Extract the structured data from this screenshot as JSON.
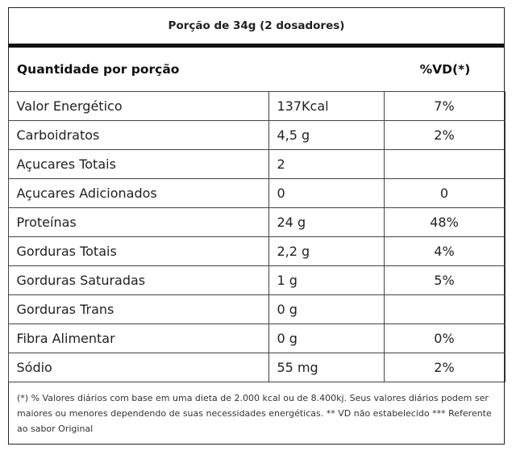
{
  "serving": "Porção de 34g (2 dosadores)",
  "header": {
    "left": "Quantidade por porção",
    "right": "%VD(*)"
  },
  "rows": [
    {
      "name": "Valor Energético",
      "amount": "137Kcal",
      "vd": "7%"
    },
    {
      "name": "Carboidratos",
      "amount": "4,5 g",
      "vd": "2%"
    },
    {
      "name": "Açucares Totais",
      "amount": "2",
      "vd": ""
    },
    {
      "name": "Açucares Adicionados",
      "amount": "0",
      "vd": "0"
    },
    {
      "name": "Proteínas",
      "amount": "24 g",
      "vd": "48%"
    },
    {
      "name": "Gorduras Totais",
      "amount": "2,2 g",
      "vd": "4%"
    },
    {
      "name": "Gorduras Saturadas",
      "amount": "1 g",
      "vd": "5%"
    },
    {
      "name": "Gorduras Trans",
      "amount": "0 g",
      "vd": ""
    },
    {
      "name": "Fibra Alimentar",
      "amount": "0 g",
      "vd": "0%"
    },
    {
      "name": "Sódio",
      "amount": "55 mg",
      "vd": "2%"
    }
  ],
  "footnote": "(*) % Valores diários com base em uma dieta de 2.000 kcal ou de 8.400kj. Seus valores diários podem ser maiores ou menores dependendo de suas necessidades energéticas. ** VD não estabelecido *** Referente ao sabor Original"
}
